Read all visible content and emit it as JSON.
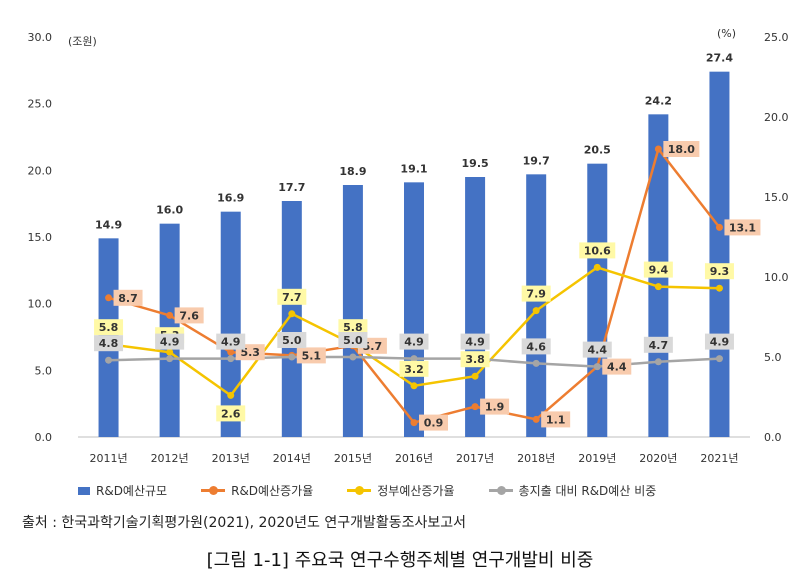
{
  "chart_data": {
    "type": "bar",
    "categories": [
      "2011년",
      "2012년",
      "2013년",
      "2014년",
      "2015년",
      "2016년",
      "2017년",
      "2018년",
      "2019년",
      "2020년",
      "2021년"
    ],
    "left_unit": "(조원)",
    "right_unit": "(%)",
    "left_ylim": [
      0,
      30
    ],
    "right_ylim": [
      0,
      25
    ],
    "left_ticks": [
      "0.0",
      "5.0",
      "10.0",
      "15.0",
      "20.0",
      "25.0",
      "30.0"
    ],
    "right_ticks": [
      "0.0",
      "5.0",
      "10.0",
      "15.0",
      "20.0",
      "25.0"
    ],
    "series": [
      {
        "name": "R&D예산규모",
        "type": "bar",
        "axis": "left",
        "color": "#4472C4",
        "values": [
          14.9,
          16.0,
          16.9,
          17.7,
          18.9,
          19.1,
          19.5,
          19.7,
          20.5,
          24.2,
          27.4
        ],
        "labels": [
          "14.9",
          "16.0",
          "16.9",
          "17.7",
          "18.9",
          "19.1",
          "19.5",
          "19.7",
          "20.5",
          "24.2",
          "27.4"
        ]
      },
      {
        "name": "R&D예산증가율",
        "type": "line",
        "axis": "right",
        "color": "#ED7D31",
        "label_bg": "#F8CBAD",
        "values": [
          8.7,
          7.6,
          5.3,
          5.1,
          5.7,
          0.9,
          1.9,
          1.1,
          4.4,
          18.0,
          13.1
        ],
        "labels": [
          "8.7",
          "7.6",
          "5.3",
          "5.1",
          "5.7",
          "0.9",
          "1.9",
          "1.1",
          "4.4",
          "18.0",
          "13.1"
        ]
      },
      {
        "name": "정부예산증가율",
        "type": "line",
        "axis": "right",
        "color": "#F5C400",
        "label_bg": "#FFF9A6",
        "values": [
          5.8,
          5.3,
          2.6,
          7.7,
          5.8,
          3.2,
          3.8,
          7.9,
          10.6,
          9.4,
          9.3
        ],
        "labels": [
          "5.8",
          "5.3",
          "2.6",
          "7.7",
          "5.8",
          "3.2",
          "3.8",
          "7.9",
          "10.6",
          "9.4",
          "9.3"
        ]
      },
      {
        "name": "총지출 대비 R&D예산 비중",
        "type": "line",
        "axis": "right",
        "color": "#A5A5A5",
        "label_bg": "#D9D9D9",
        "values": [
          4.8,
          4.9,
          4.9,
          5.0,
          5.0,
          4.9,
          4.9,
          4.6,
          4.4,
          4.7,
          4.9
        ],
        "labels": [
          "4.8",
          "4.9",
          "4.9",
          "5.0",
          "5.0",
          "4.9",
          "4.9",
          "4.6",
          "4.4",
          "4.7",
          "4.9"
        ]
      }
    ]
  },
  "source": "출처 : 한국과학기술기획평가원(2021), 2020년도 연구개발활동조사보고서",
  "caption": "[그림 1-1] 주요국 연구수행주체별 연구개발비 비중"
}
